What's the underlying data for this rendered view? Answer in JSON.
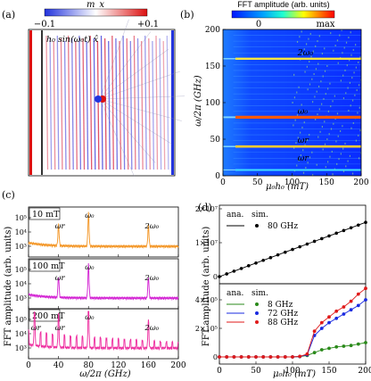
{
  "figure": {
    "panel_a": {
      "label": "(a)",
      "colorbar_title": "m_x",
      "colorbar_min": "−0.1",
      "colorbar_max": "+0.1",
      "drive_label": "h₀ sin(ω₀t) x̂"
    },
    "panel_b": {
      "label": "(b)",
      "colorbar_title": "FFT amplitude (arb. units)",
      "colorbar_min": "0",
      "colorbar_max": "max",
      "ylabel": "ω/2π (GHz)",
      "xlabel": "μ₀h₀ (mT)",
      "yticks": [
        "0",
        "50",
        "100",
        "150",
        "200"
      ],
      "xticks": [
        "0",
        "50",
        "100",
        "150",
        "200"
      ],
      "annotations": [
        "2ω₀",
        "ω₀",
        "ωr",
        "ωr"
      ],
      "colors": {
        "low": "#0a2cff",
        "mid": "#2fd7ff",
        "high": "#ff2a00"
      }
    },
    "panel_c": {
      "label": "(c)",
      "ylabel": "FFT amplitude (arb. units)",
      "xlabel": "ω/2π (GHz)",
      "xticks": [
        "0",
        "40",
        "80",
        "120",
        "160",
        "200"
      ],
      "yticks": [
        "10⁵",
        "10⁴",
        "10³"
      ],
      "sub_panels": [
        {
          "field_label": "10 mT",
          "color": "#f39422",
          "peaks": [
            "ωr",
            "ω₀",
            "2ω₀"
          ]
        },
        {
          "field_label": "100 mT",
          "color": "#d21fd2",
          "peaks": [
            "ωr",
            "ω₀",
            "2ω₀"
          ]
        },
        {
          "field_label": "200 mT",
          "color": "#ee2a9e",
          "peaks": [
            "ωr",
            "ωr",
            "ω₀",
            "2ω₀"
          ]
        }
      ]
    },
    "panel_d": {
      "label": "(d)",
      "ylabel": "FFT amplitude (arb. units)",
      "xlabel": "μ₀h₀ (mT)",
      "xticks": [
        "0",
        "50",
        "100",
        "150",
        "200"
      ],
      "top_yticks": [
        "0",
        "1×10⁷",
        "2×10⁷"
      ],
      "bottom_yticks": [
        "0",
        "2×10⁵",
        "4×10⁵"
      ],
      "legend_top": {
        "ana": "ana.",
        "sim": "sim.",
        "entries": [
          "80 GHz"
        ]
      },
      "legend_bottom": {
        "ana": "ana.",
        "sim": "sim.",
        "entries": [
          "8 GHz",
          "72 GHz",
          "88 GHz"
        ]
      },
      "colors": {
        "80": "#000000",
        "8": "#2a8a1a",
        "72": "#1a2ae0",
        "88": "#e01a1a"
      }
    }
  },
  "chart_data": [
    {
      "type": "heatmap",
      "title": "FFT amplitude (arb. units)",
      "xlabel": "μ₀h₀ (mT)",
      "ylabel": "ω/2π (GHz)",
      "xlim": [
        0,
        200
      ],
      "ylim": [
        0,
        200
      ],
      "bright_lines_GHz": [
        8,
        40,
        80,
        160
      ],
      "annotations": [
        {
          "text": "2ω₀",
          "x": 95,
          "y": 160
        },
        {
          "text": "ω₀",
          "x": 95,
          "y": 80
        },
        {
          "text": "ωr",
          "x": 95,
          "y": 40
        },
        {
          "text": "ωr",
          "x": 95,
          "y": 16
        }
      ]
    },
    {
      "type": "line",
      "xlabel": "ω/2π (GHz)",
      "ylabel": "FFT amplitude (arb. units)",
      "xlim": [
        0,
        200
      ],
      "series": [
        {
          "name": "10 mT",
          "peaks_GHz": [
            40,
            80,
            160
          ]
        },
        {
          "name": "100 mT",
          "peaks_GHz": [
            40,
            80,
            160
          ]
        },
        {
          "name": "200 mT",
          "peaks_GHz": [
            8,
            40,
            80,
            160
          ]
        }
      ]
    },
    {
      "type": "scatter",
      "xlabel": "μ₀h₀ (mT)",
      "ylabel": "FFT amplitude (arb. units)",
      "xlim": [
        0,
        200
      ],
      "ylim": [
        0,
        20000000
      ],
      "series": [
        {
          "name": "80 GHz",
          "x": [
            0,
            10,
            20,
            30,
            40,
            50,
            60,
            70,
            80,
            90,
            100,
            110,
            120,
            130,
            140,
            150,
            160,
            170,
            180,
            190,
            200
          ],
          "y": [
            0,
            800000,
            1600000,
            2400000,
            3200000,
            4000000,
            4800000,
            5600000,
            6400000,
            7200000,
            8000000,
            8800000,
            9600000,
            10400000,
            11200000,
            12000000,
            12800000,
            13600000,
            14400000,
            15200000,
            16000000
          ]
        }
      ]
    },
    {
      "type": "scatter",
      "xlabel": "μ₀h₀ (mT)",
      "ylabel": "FFT amplitude (arb. units)",
      "xlim": [
        0,
        200
      ],
      "ylim": [
        0,
        500000
      ],
      "series": [
        {
          "name": "8 GHz",
          "x": [
            0,
            10,
            20,
            30,
            40,
            50,
            60,
            70,
            80,
            90,
            100,
            110,
            120,
            130,
            140,
            150,
            160,
            170,
            180,
            190,
            200
          ],
          "y": [
            0,
            0,
            0,
            0,
            0,
            0,
            0,
            0,
            0,
            0,
            0,
            2000,
            10000,
            30000,
            50000,
            60000,
            70000,
            75000,
            80000,
            90000,
            100000
          ]
        },
        {
          "name": "72 GHz",
          "x": [
            0,
            10,
            20,
            30,
            40,
            50,
            60,
            70,
            80,
            90,
            100,
            110,
            120,
            130,
            140,
            150,
            160,
            170,
            180,
            190,
            200
          ],
          "y": [
            0,
            0,
            0,
            0,
            0,
            0,
            0,
            0,
            0,
            0,
            0,
            3000,
            15000,
            150000,
            200000,
            240000,
            270000,
            300000,
            330000,
            360000,
            400000
          ]
        },
        {
          "name": "88 GHz",
          "x": [
            0,
            10,
            20,
            30,
            40,
            50,
            60,
            70,
            80,
            90,
            100,
            110,
            120,
            130,
            140,
            150,
            160,
            170,
            180,
            190,
            200
          ],
          "y": [
            0,
            0,
            0,
            0,
            0,
            0,
            0,
            0,
            0,
            0,
            0,
            4000,
            20000,
            180000,
            240000,
            280000,
            320000,
            350000,
            390000,
            440000,
            480000
          ]
        }
      ]
    }
  ]
}
